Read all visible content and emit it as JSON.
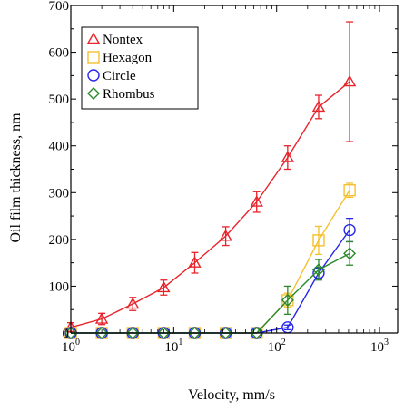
{
  "chart_data": {
    "type": "line",
    "title": "",
    "xlabel": "Velocity, mm/s",
    "ylabel": "Oil film thickness, nm",
    "x_scale": "log",
    "xlim": [
      1,
      1500
    ],
    "ylim": [
      0,
      700
    ],
    "x_ticks": [
      {
        "value": 1,
        "base": "10",
        "exp": "0"
      },
      {
        "value": 10,
        "base": "10",
        "exp": "1"
      },
      {
        "value": 100,
        "base": "10",
        "exp": "2"
      },
      {
        "value": 1000,
        "base": "10",
        "exp": "3"
      }
    ],
    "y_ticks": [
      "0",
      "100",
      "200",
      "300",
      "400",
      "500",
      "600",
      "700"
    ],
    "grid": false,
    "legend_position": "top-left",
    "series": [
      {
        "name": "Nontex",
        "marker": "triangle",
        "color": "#e8232a",
        "x": [
          1,
          2,
          4,
          8,
          16,
          32,
          64,
          128,
          256,
          512
        ],
        "y": [
          12,
          30,
          62,
          97,
          150,
          207,
          280,
          375,
          483,
          537
        ],
        "err": [
          10,
          12,
          14,
          16,
          22,
          20,
          22,
          25,
          25,
          128
        ]
      },
      {
        "name": "Hexagon",
        "marker": "square",
        "color": "#f5c02f",
        "x": [
          1,
          2,
          4,
          8,
          16,
          32,
          64,
          128,
          256,
          512
        ],
        "y": [
          0,
          0,
          0,
          0,
          0,
          0,
          0,
          70,
          198,
          305
        ],
        "err": [
          0,
          0,
          0,
          0,
          0,
          0,
          0,
          15,
          30,
          15
        ]
      },
      {
        "name": "Circle",
        "marker": "circle",
        "color": "#2727e8",
        "x": [
          1,
          2,
          4,
          8,
          16,
          32,
          64,
          128,
          256,
          512
        ],
        "y": [
          0,
          0,
          0,
          0,
          0,
          0,
          0,
          12,
          128,
          220
        ],
        "err": [
          0,
          0,
          0,
          0,
          0,
          0,
          0,
          5,
          12,
          25
        ]
      },
      {
        "name": "Rhombus",
        "marker": "diamond",
        "color": "#2a8a2a",
        "x": [
          1,
          2,
          4,
          8,
          16,
          32,
          64,
          128,
          256,
          512
        ],
        "y": [
          0,
          0,
          0,
          0,
          0,
          0,
          0,
          70,
          135,
          170
        ],
        "err": [
          0,
          0,
          0,
          0,
          0,
          0,
          0,
          30,
          22,
          25
        ]
      }
    ]
  }
}
